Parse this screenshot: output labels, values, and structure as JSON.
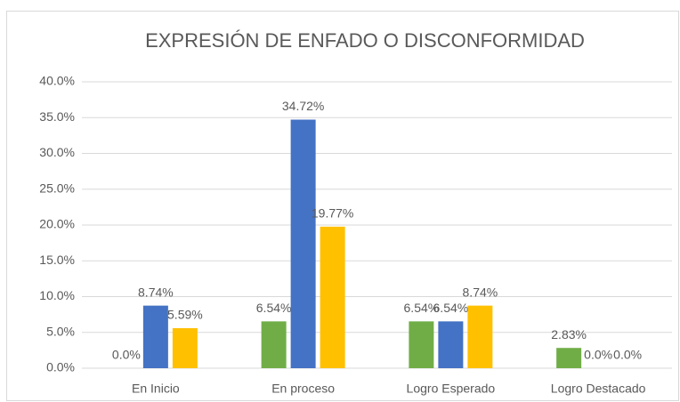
{
  "chart_data": {
    "type": "bar",
    "title": "EXPRESIÓN DE ENFADO O DISCONFORMIDAD",
    "categories": [
      "En Inicio",
      "En proceso",
      "Logro Esperado",
      "Logro Destacado"
    ],
    "series": [
      {
        "color": "#70ad47",
        "values": [
          0,
          6.54,
          6.54,
          2.83
        ],
        "value_labels": [
          "0.0%",
          "6.54%",
          "6.54%",
          "2.83%"
        ]
      },
      {
        "color": "#4472c4",
        "values": [
          8.74,
          34.72,
          6.54,
          0
        ],
        "value_labels": [
          "8.74%",
          "34.72%",
          "6.54%",
          "0.0%"
        ]
      },
      {
        "color": "#ffc000",
        "values": [
          5.59,
          19.77,
          8.74,
          0
        ],
        "value_labels": [
          "5.59%",
          "19.77%",
          "8.74%",
          "0.0%"
        ]
      }
    ],
    "ylim": [
      0,
      40
    ],
    "yticks": [
      {
        "value": 0,
        "label": "0.0%"
      },
      {
        "value": 5,
        "label": "5.0%"
      },
      {
        "value": 10,
        "label": "10.0%"
      },
      {
        "value": 15,
        "label": "15.0%"
      },
      {
        "value": 20,
        "label": "20.0%"
      },
      {
        "value": 25,
        "label": "25.0%"
      },
      {
        "value": 30,
        "label": "30.0%"
      },
      {
        "value": 35,
        "label": "35.0%"
      },
      {
        "value": 40,
        "label": "40.0%"
      }
    ],
    "grid": true
  }
}
